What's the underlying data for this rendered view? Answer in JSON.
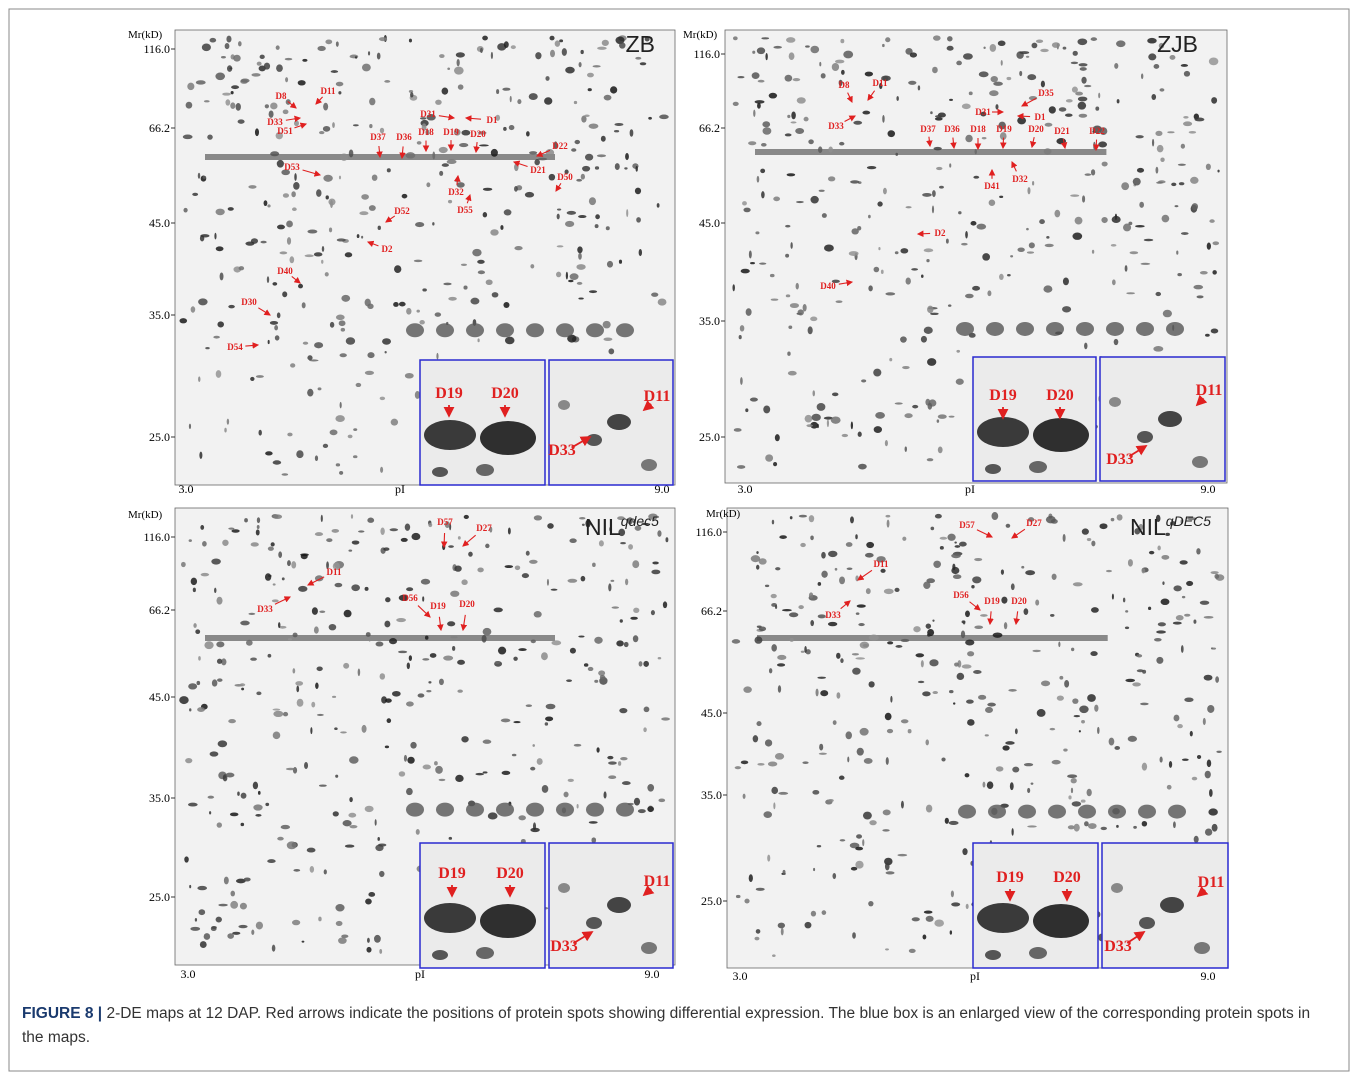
{
  "figure": {
    "panels": [
      {
        "title": "ZB",
        "y_axis_label": "Mr(kD)",
        "y_labels": [
          "116.0",
          "66.2",
          "45.0",
          "35.0",
          "25.0"
        ],
        "x_labels": [
          "3.0",
          "pI",
          "9.0"
        ],
        "spot_labels": [
          "D8",
          "D11",
          "D33",
          "D51",
          "D31",
          "D1",
          "D37",
          "D36",
          "D18",
          "D19",
          "D20",
          "D22",
          "D53",
          "D21",
          "D50",
          "D32",
          "D55",
          "D52",
          "D2",
          "D40",
          "D30",
          "D54"
        ],
        "inset_labels": [
          "D19",
          "D20",
          "D33",
          "D11"
        ]
      },
      {
        "title": "ZJB",
        "y_axis_label": "Mr(kD)",
        "y_labels": [
          "116.0",
          "66.2",
          "45.0",
          "35.0",
          "25.0"
        ],
        "x_labels": [
          "3.0",
          "pI",
          "9.0"
        ],
        "spot_labels": [
          "D8",
          "D11",
          "D33",
          "D35",
          "D31",
          "D1",
          "D37",
          "D36",
          "D18",
          "D19",
          "D20",
          "D21",
          "D22",
          "D41",
          "D32",
          "D2",
          "D40"
        ],
        "inset_labels": [
          "D19",
          "D20",
          "D33",
          "D11"
        ]
      },
      {
        "title": "NIL",
        "title_sup": "qdec5",
        "y_axis_label": "Mr(kD)",
        "y_labels": [
          "116.0",
          "66.2",
          "45.0",
          "35.0",
          "25.0"
        ],
        "x_labels": [
          "3.0",
          "pI",
          "9.0"
        ],
        "spot_labels": [
          "D57",
          "D27",
          "D11",
          "D33",
          "D56",
          "D19",
          "D20"
        ],
        "inset_labels": [
          "D19",
          "D20",
          "D33",
          "D11"
        ]
      },
      {
        "title": "NIL",
        "title_sup": "qDEC5",
        "y_axis_label": "Mr(kD)",
        "y_labels": [
          "116.0",
          "66.2",
          "45.0",
          "35.0",
          "25.0"
        ],
        "x_labels": [
          "3.0",
          "pI",
          "9.0"
        ],
        "spot_labels": [
          "D57",
          "D27",
          "D11",
          "D33",
          "D56",
          "D19",
          "D20"
        ],
        "inset_labels": [
          "D19",
          "D20",
          "D33",
          "D11"
        ]
      }
    ],
    "caption": {
      "label": "FIGURE 8 |",
      "text": "2-DE maps at 12 DAP. Red arrows indicate the positions of protein spots showing differential expression. The blue box is an enlarged view of the corresponding protein spots in the maps."
    }
  }
}
